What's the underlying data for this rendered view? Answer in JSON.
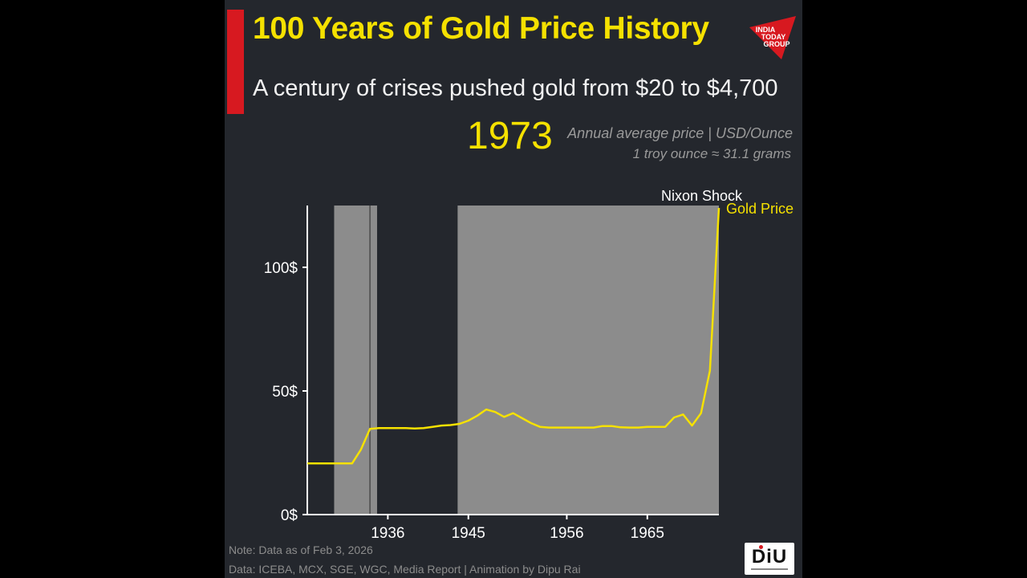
{
  "header": {
    "title": "100 Years of Gold Price History",
    "subtitle": "A century of crises pushed gold from $20 to $4,700",
    "current_year": "1973",
    "unit_note": "Annual average price | USD/Ounce",
    "conversion_note": "1 troy ounce ≈ 31.1 grams"
  },
  "footer": {
    "note": "Note: Data as of Feb 3, 2026",
    "source": "Data: ICEBA, MCX, SGE, WGC, Media Report | Animation by Dipu Rai"
  },
  "logos": {
    "publisher": "india-today-group-logo",
    "publisher_lines": [
      "INDIA",
      "TODAY",
      "GROUP"
    ],
    "badge": "DiU"
  },
  "colors": {
    "accent": "#f5e100",
    "brand_red": "#d71920",
    "background": "#24272d",
    "shade": "#8c8c8c"
  },
  "chart_data": {
    "type": "line",
    "xlim": [
      1927,
      1973
    ],
    "ylim": [
      0,
      125
    ],
    "x_ticks": [
      {
        "value": 1936,
        "label": "1936"
      },
      {
        "value": 1945,
        "label": "1945"
      },
      {
        "value": 1956,
        "label": "1956"
      },
      {
        "value": 1965,
        "label": "1965"
      }
    ],
    "y_ticks": [
      {
        "value": 0,
        "label": "0$"
      },
      {
        "value": 50,
        "label": "50$"
      },
      {
        "value": 100,
        "label": "100$"
      }
    ],
    "grid": false,
    "shaded_periods": [
      {
        "start": 1930,
        "end": 1934.8
      },
      {
        "start": 1943.8,
        "end": 1973
      }
    ],
    "marker_lines": [
      1934
    ],
    "series": [
      {
        "name": "Gold Price",
        "color": "#f5e100",
        "x": [
          1927,
          1928,
          1929,
          1930,
          1931,
          1932,
          1933,
          1934,
          1935,
          1936,
          1937,
          1938,
          1939,
          1940,
          1941,
          1942,
          1943,
          1944,
          1945,
          1946,
          1947,
          1948,
          1949,
          1950,
          1951,
          1952,
          1953,
          1954,
          1955,
          1956,
          1957,
          1958,
          1959,
          1960,
          1961,
          1962,
          1963,
          1964,
          1965,
          1966,
          1967,
          1968,
          1969,
          1970,
          1971,
          1972,
          1973
        ],
        "y": [
          20.67,
          20.67,
          20.67,
          20.67,
          20.67,
          20.67,
          26.33,
          34.69,
          35.0,
          35.0,
          35.0,
          35.0,
          34.8,
          35.0,
          35.5,
          36.0,
          36.2,
          36.7,
          38.0,
          40.0,
          42.5,
          41.5,
          39.5,
          41.0,
          39.0,
          37.0,
          35.5,
          35.2,
          35.2,
          35.2,
          35.2,
          35.2,
          35.2,
          35.8,
          35.8,
          35.3,
          35.2,
          35.2,
          35.5,
          35.5,
          35.5,
          39.3,
          40.5,
          36.0,
          41.0,
          58.2,
          124.0
        ]
      }
    ],
    "annotations": [
      {
        "text": "Nixon Shock",
        "x": 1973,
        "y": 124
      }
    ]
  }
}
